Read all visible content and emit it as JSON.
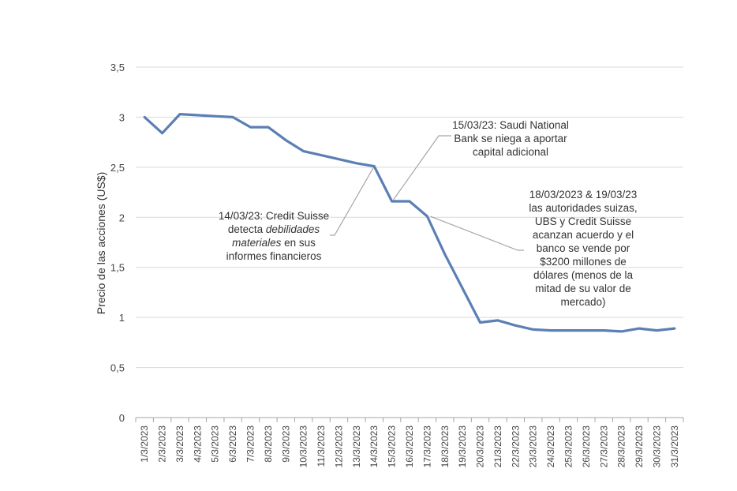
{
  "chart_data": {
    "type": "line",
    "ylabel": "Precio de las acciones (US$)",
    "xlabel": "",
    "ylim": [
      0,
      3.5
    ],
    "yticks": [
      {
        "v": 0,
        "label": "0"
      },
      {
        "v": 0.5,
        "label": "0,5"
      },
      {
        "v": 1,
        "label": "1"
      },
      {
        "v": 1.5,
        "label": "1,5"
      },
      {
        "v": 2,
        "label": "2"
      },
      {
        "v": 2.5,
        "label": "2,5"
      },
      {
        "v": 3,
        "label": "3"
      },
      {
        "v": 3.5,
        "label": "3,5"
      }
    ],
    "grid": true,
    "line_color": "#5B7FB5",
    "categories": [
      "1/3/2023",
      "2/3/2023",
      "3/3/2023",
      "4/3/2023",
      "5/3/2023",
      "6/3/2023",
      "7/3/2023",
      "8/3/2023",
      "9/3/2023",
      "10/3/2023",
      "11/3/2023",
      "12/3/2023",
      "13/3/2023",
      "14/3/2023",
      "15/3/2023",
      "16/3/2023",
      "17/3/2023",
      "18/3/2023",
      "19/3/2023",
      "20/3/2023",
      "21/3/2023",
      "22/3/2023",
      "23/3/2023",
      "24/3/2023",
      "25/3/2023",
      "26/3/2023",
      "27/3/2023",
      "28/3/2023",
      "29/3/2023",
      "30/3/2023",
      "31/3/2023"
    ],
    "values": [
      3.0,
      2.84,
      3.03,
      3.02,
      3.01,
      3.0,
      2.9,
      2.9,
      2.77,
      2.66,
      2.62,
      2.58,
      2.54,
      2.51,
      2.16,
      2.16,
      2.01,
      1.63,
      1.29,
      0.95,
      0.97,
      0.92,
      0.88,
      0.87,
      0.87,
      0.87,
      0.87,
      0.86,
      0.89,
      0.87,
      0.89
    ]
  },
  "annotations": [
    {
      "id": "credit-suisse-14",
      "lines": [
        "14/03/23: Credit Suisse",
        "detecta |debilidades",
        "|materiales| en sus",
        "informes financieros"
      ],
      "text_plain": "14/03/23: Credit Suisse detecta debilidades materiales en sus informes financieros",
      "target_category": "14/3/2023"
    },
    {
      "id": "saudi-15",
      "lines": [
        "15/03/23: Saudi National",
        "Bank se niega a aportar",
        "capital adicional"
      ],
      "text_plain": "15/03/23: Saudi National Bank se niega a aportar capital adicional",
      "target_category": "15/3/2023"
    },
    {
      "id": "ubs-18",
      "lines": [
        "18/03/2023 & 19/03/23",
        "las autoridades suizas,",
        "UBS y Credit Suisse",
        "acanzan acuerdo y el",
        "banco se vende por",
        "$3200 millones de",
        "dólares  (menos de la",
        "mitad de su valor de",
        "mercado)"
      ],
      "text_plain": "18/03/2023 & 19/03/23 las autoridades suizas, UBS y Credit Suisse acanzan acuerdo y el banco se vende por $3200 millones de dólares (menos de la mitad de su valor de mercado)",
      "target_category": "17/3/2023"
    }
  ]
}
